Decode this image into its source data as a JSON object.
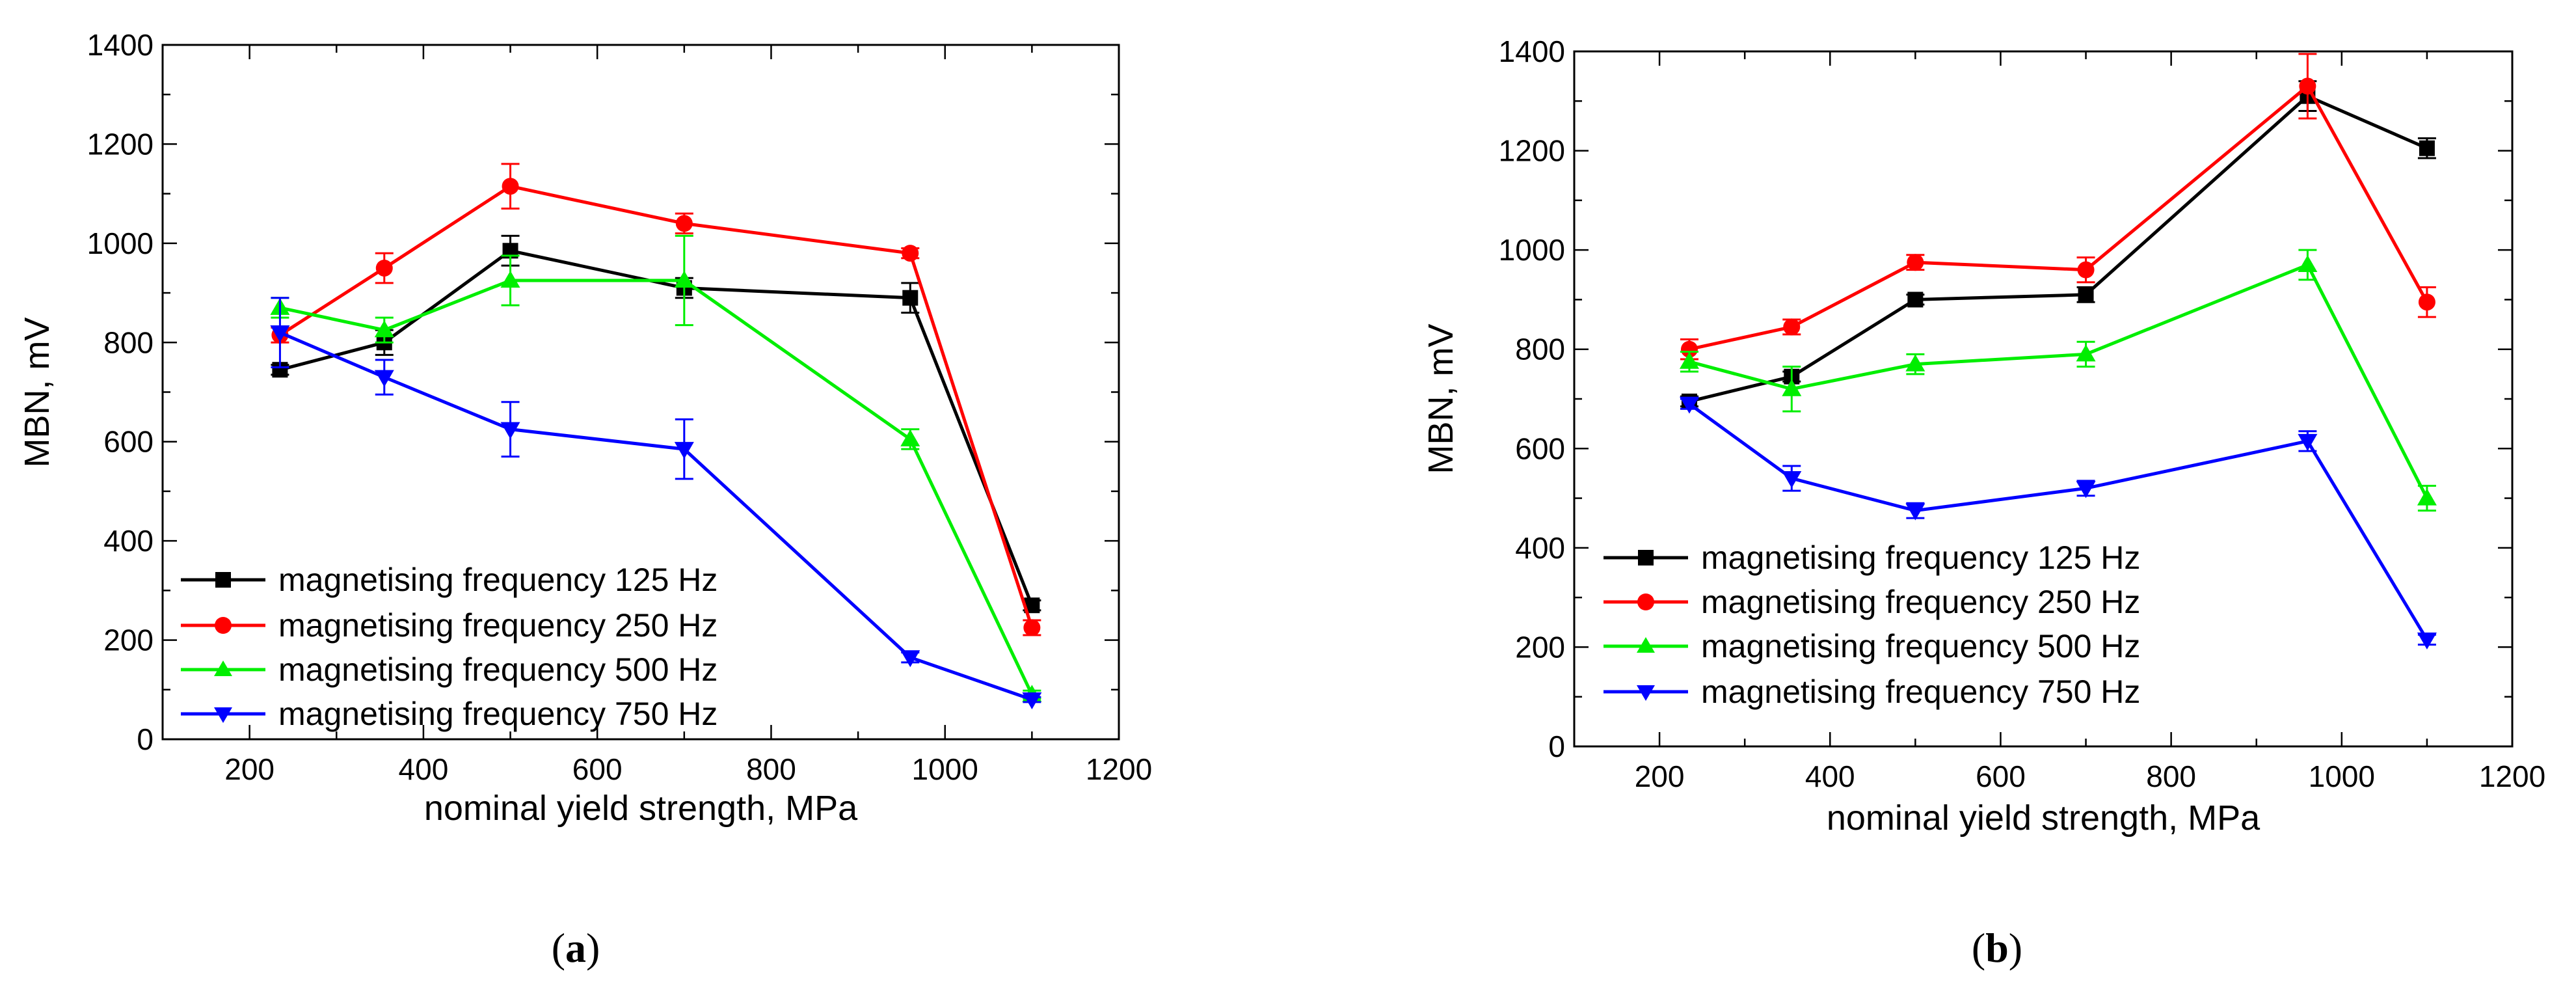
{
  "chart_data": [
    {
      "panel": "a",
      "caption_open": "(",
      "caption_letter": "a",
      "caption_close": ")",
      "type": "line",
      "xlabel": "nominal yield strength, MPa",
      "ylabel": "MBN, mV",
      "xlim": [
        100,
        1200
      ],
      "ylim": [
        0,
        1400
      ],
      "xticks": [
        200,
        400,
        600,
        800,
        1000,
        1200
      ],
      "yticks": [
        0,
        200,
        400,
        600,
        800,
        1000,
        1200,
        1400
      ],
      "legend_position": "bottom-left",
      "x": [
        235,
        355,
        500,
        700,
        960,
        1100
      ],
      "series": [
        {
          "name": "magnetising frequency 125 Hz",
          "color": "#000000",
          "marker": "square",
          "values": [
            745,
            800,
            985,
            910,
            890,
            270
          ],
          "errors": [
            10,
            25,
            30,
            20,
            30,
            10
          ]
        },
        {
          "name": "magnetising frequency 250 Hz",
          "color": "#ff0000",
          "marker": "circle",
          "values": [
            815,
            950,
            1115,
            1040,
            980,
            225
          ],
          "errors": [
            15,
            30,
            45,
            20,
            10,
            15
          ]
        },
        {
          "name": "magnetising frequency 500 Hz",
          "color": "#00ee00",
          "marker": "triangle-up",
          "values": [
            870,
            825,
            925,
            925,
            605,
            90
          ],
          "errors": [
            20,
            25,
            50,
            90,
            20,
            8
          ]
        },
        {
          "name": "magnetising frequency 750 Hz",
          "color": "#0000ff",
          "marker": "triangle-down",
          "values": [
            820,
            730,
            625,
            585,
            165,
            80
          ],
          "errors": [
            70,
            35,
            55,
            60,
            10,
            5
          ]
        }
      ]
    },
    {
      "panel": "b",
      "caption_open": "(",
      "caption_letter": "b",
      "caption_close": ")",
      "type": "line",
      "xlabel": "nominal yield strength, MPa",
      "ylabel": "MBN, mV",
      "xlim": [
        100,
        1200
      ],
      "ylim": [
        0,
        1400
      ],
      "xticks": [
        200,
        400,
        600,
        800,
        1000,
        1200
      ],
      "yticks": [
        0,
        200,
        400,
        600,
        800,
        1000,
        1200,
        1400
      ],
      "legend_position": "middle-left",
      "x": [
        235,
        355,
        500,
        700,
        960,
        1100
      ],
      "series": [
        {
          "name": "magnetising frequency 125 Hz",
          "color": "#000000",
          "marker": "square",
          "values": [
            695,
            745,
            900,
            910,
            1310,
            1205
          ],
          "errors": [
            10,
            10,
            10,
            15,
            30,
            20
          ]
        },
        {
          "name": "magnetising frequency 250 Hz",
          "color": "#ff0000",
          "marker": "circle",
          "values": [
            800,
            845,
            975,
            960,
            1330,
            895
          ],
          "errors": [
            20,
            15,
            15,
            25,
            65,
            30
          ]
        },
        {
          "name": "magnetising frequency 500 Hz",
          "color": "#00ee00",
          "marker": "triangle-up",
          "values": [
            775,
            720,
            770,
            790,
            970,
            500
          ],
          "errors": [
            20,
            45,
            20,
            25,
            30,
            25
          ]
        },
        {
          "name": "magnetising frequency 750 Hz",
          "color": "#0000ff",
          "marker": "triangle-down",
          "values": [
            690,
            540,
            475,
            520,
            615,
            215
          ],
          "errors": [
            10,
            25,
            15,
            15,
            20,
            10
          ]
        }
      ]
    }
  ]
}
